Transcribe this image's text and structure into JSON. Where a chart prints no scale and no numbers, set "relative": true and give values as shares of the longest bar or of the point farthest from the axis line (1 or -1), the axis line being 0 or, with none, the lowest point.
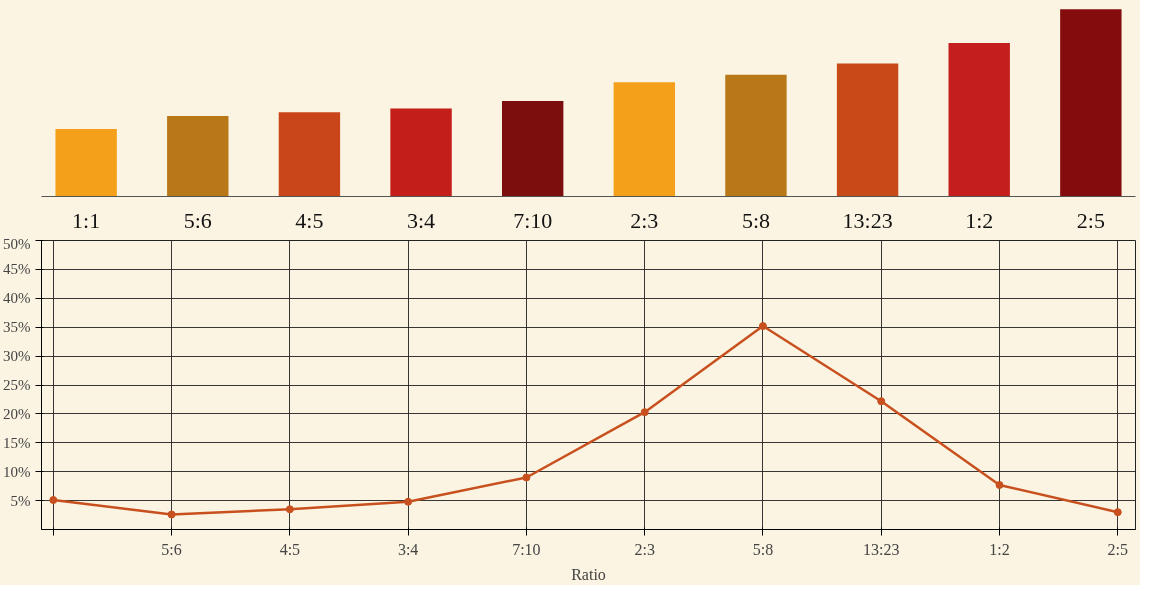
{
  "chart_data": [
    {
      "type": "bar",
      "relative": true,
      "categories": [
        "1:1",
        "5:6",
        "4:5",
        "3:4",
        "7:10",
        "2:3",
        "5:8",
        "13:23",
        "1:2",
        "2:5"
      ],
      "values": [
        0.36,
        0.43,
        0.45,
        0.47,
        0.51,
        0.61,
        0.65,
        0.71,
        0.82,
        1
      ],
      "colors": [
        "#f5a01a",
        "#b87818",
        "#c8461a",
        "#c41e1a",
        "#7d0e0e",
        "#f5a01a",
        "#b87818",
        "#c84a18",
        "#c41e1e",
        "#850c0c"
      ],
      "grid": false
    },
    {
      "type": "line",
      "xlabel": "Ratio",
      "categories": [
        null,
        "5:6",
        "4:5",
        "3:4",
        "7:10",
        "2:3",
        "5:8",
        "13:23",
        "1:2",
        "2:5"
      ],
      "series": [
        {
          "color": "#c8501e",
          "values": [
            5.1,
            2.6,
            3.5,
            4.8,
            9.0,
            20.3,
            35.2,
            22.2,
            7.7,
            3.0
          ]
        }
      ],
      "ylim": [
        0,
        50
      ],
      "yticks": [
        {
          "value": 5,
          "label": "5%"
        },
        {
          "value": 10,
          "label": "10%"
        },
        {
          "value": 15,
          "label": "15%"
        },
        {
          "value": 20,
          "label": "20%"
        },
        {
          "value": 25,
          "label": "25%"
        },
        {
          "value": 30,
          "label": "30%"
        },
        {
          "value": 35,
          "label": "35%"
        },
        {
          "value": 40,
          "label": "40%"
        },
        {
          "value": 45,
          "label": "45%"
        },
        {
          "value": 50,
          "label": "50%"
        }
      ],
      "grid": true,
      "marker": "circle",
      "line_style": "solid"
    }
  ]
}
